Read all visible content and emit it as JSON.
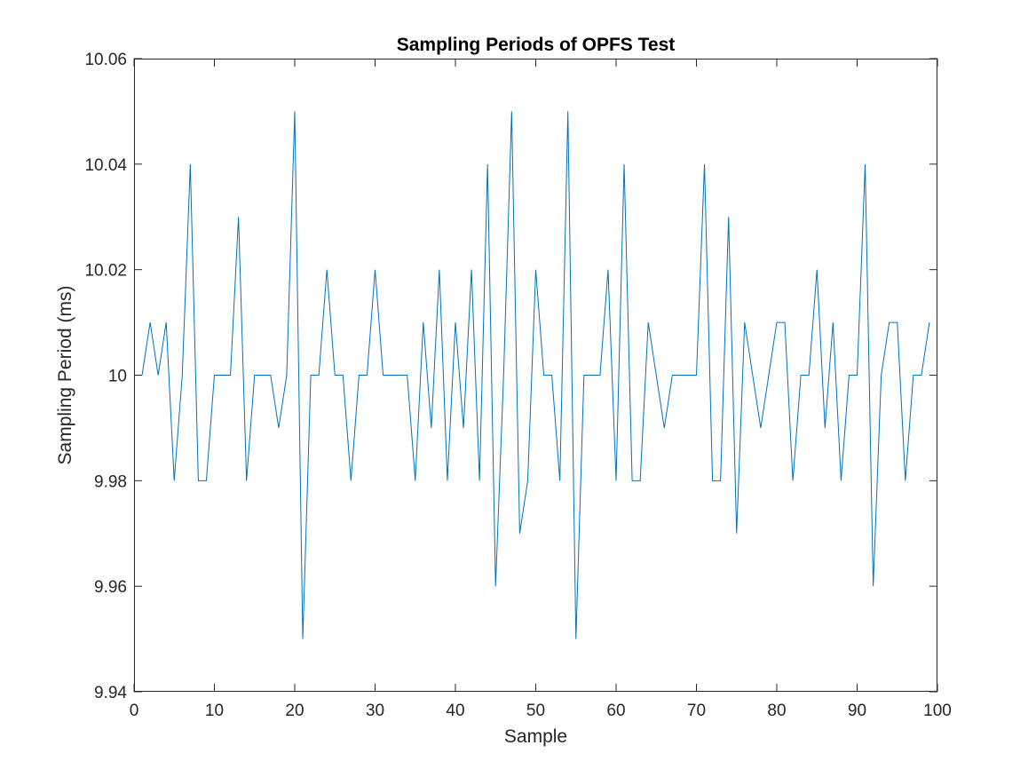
{
  "chart_data": {
    "type": "line",
    "title": "Sampling Periods of OPFS Test",
    "xlabel": "Sample",
    "ylabel": "Sampling Period (ms)",
    "xlim": [
      0,
      100
    ],
    "ylim": [
      9.94,
      10.06
    ],
    "xticks": [
      0,
      10,
      20,
      30,
      40,
      50,
      60,
      70,
      80,
      90,
      100
    ],
    "yticks": [
      9.94,
      9.96,
      9.98,
      10,
      10.02,
      10.04,
      10.06
    ],
    "xtick_labels": [
      "0",
      "10",
      "20",
      "30",
      "40",
      "50",
      "60",
      "70",
      "80",
      "90",
      "100"
    ],
    "ytick_labels": [
      "9.94",
      "9.96",
      "9.98",
      "10",
      "10.02",
      "10.04",
      "10.06"
    ],
    "grid": false,
    "box": true,
    "series": [
      {
        "color": "#0072BD",
        "x": [
          1,
          2,
          3,
          4,
          5,
          6,
          7,
          8,
          9,
          10,
          11,
          12,
          13,
          14,
          15,
          16,
          17,
          18,
          19,
          20,
          21,
          22,
          23,
          24,
          25,
          26,
          27,
          28,
          29,
          30,
          31,
          32,
          33,
          34,
          35,
          36,
          37,
          38,
          39,
          40,
          41,
          42,
          43,
          44,
          45,
          46,
          47,
          48,
          49,
          50,
          51,
          52,
          53,
          54,
          55,
          56,
          57,
          58,
          59,
          60,
          61,
          62,
          63,
          64,
          65,
          66,
          67,
          68,
          69,
          70,
          71,
          72,
          73,
          74,
          75,
          76,
          77,
          78,
          79,
          80,
          81,
          82,
          83,
          84,
          85,
          86,
          87,
          88,
          89,
          90,
          91,
          92,
          93,
          94,
          95,
          96,
          97,
          98,
          99
        ],
        "y": [
          10.0,
          10.01,
          10.0,
          10.01,
          9.98,
          10.0,
          10.04,
          9.98,
          9.98,
          10.0,
          10.0,
          10.0,
          10.03,
          9.98,
          10.0,
          10.0,
          10.0,
          9.99,
          10.0,
          10.05,
          9.95,
          10.0,
          10.0,
          10.02,
          10.0,
          10.0,
          9.98,
          10.0,
          10.0,
          10.02,
          10.0,
          10.0,
          10.0,
          10.0,
          9.98,
          10.01,
          9.99,
          10.02,
          9.98,
          10.01,
          9.99,
          10.02,
          9.98,
          10.04,
          9.96,
          10.0,
          10.05,
          9.97,
          9.98,
          10.02,
          10.0,
          10.0,
          9.98,
          10.05,
          9.95,
          10.0,
          10.0,
          10.0,
          10.02,
          9.98,
          10.04,
          9.98,
          9.98,
          10.01,
          10.0,
          9.99,
          10.0,
          10.0,
          10.0,
          10.0,
          10.04,
          9.98,
          9.98,
          10.03,
          9.97,
          10.01,
          10.0,
          9.99,
          10.0,
          10.01,
          10.01,
          9.98,
          10.0,
          10.0,
          10.02,
          9.99,
          10.01,
          9.98,
          10.0,
          10.0,
          10.04,
          9.96,
          10.0,
          10.01,
          10.01,
          9.98,
          10.0,
          10.0,
          10.01
        ]
      }
    ]
  }
}
